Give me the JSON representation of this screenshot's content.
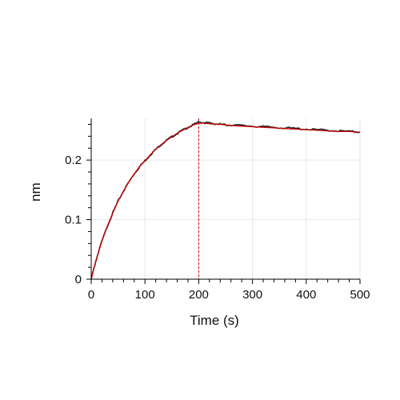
{
  "chart_data": {
    "type": "line",
    "title": "",
    "xlabel": "Time (s)",
    "ylabel": "nm",
    "xlim": [
      0,
      500
    ],
    "ylim": [
      0,
      0.27
    ],
    "x_ticks": [
      0,
      100,
      200,
      300,
      400,
      500
    ],
    "x_tick_labels": [
      "0",
      "100",
      "200",
      "300",
      "400",
      "500"
    ],
    "y_ticks": [
      0,
      0.1,
      0.2
    ],
    "y_tick_labels": [
      "0",
      "0.1",
      "0.2"
    ],
    "grid": true,
    "reference_lines_x": [
      0,
      200
    ],
    "series": [
      {
        "role": "measured",
        "color": "#222222",
        "x": [
          0,
          5,
          10,
          20,
          30,
          40,
          50,
          60,
          70,
          80,
          90,
          100,
          110,
          120,
          130,
          140,
          150,
          160,
          170,
          180,
          190,
          200,
          210,
          220,
          230,
          240,
          250,
          260,
          280,
          300,
          320,
          340,
          360,
          380,
          400,
          420,
          440,
          460,
          480,
          500
        ],
        "y": [
          0,
          0.018,
          0.035,
          0.064,
          0.089,
          0.111,
          0.131,
          0.148,
          0.163,
          0.177,
          0.189,
          0.199,
          0.209,
          0.218,
          0.226,
          0.233,
          0.239,
          0.245,
          0.25,
          0.255,
          0.259,
          0.264,
          0.263,
          0.262,
          0.261,
          0.26,
          0.259,
          0.259,
          0.258,
          0.257,
          0.256,
          0.255,
          0.254,
          0.253,
          0.252,
          0.251,
          0.25,
          0.249,
          0.248,
          0.247
        ]
      },
      {
        "role": "fit",
        "color": "#cc0000",
        "x": [
          0,
          5,
          10,
          20,
          30,
          40,
          50,
          60,
          70,
          80,
          90,
          100,
          110,
          120,
          130,
          140,
          150,
          160,
          170,
          180,
          190,
          200,
          210,
          220,
          230,
          240,
          250,
          260,
          280,
          300,
          320,
          340,
          360,
          380,
          400,
          420,
          440,
          460,
          480,
          500
        ],
        "y": [
          0,
          0.018,
          0.035,
          0.064,
          0.089,
          0.111,
          0.131,
          0.148,
          0.163,
          0.177,
          0.189,
          0.199,
          0.209,
          0.218,
          0.226,
          0.233,
          0.239,
          0.245,
          0.25,
          0.255,
          0.259,
          0.262,
          0.262,
          0.261,
          0.26,
          0.26,
          0.259,
          0.258,
          0.257,
          0.256,
          0.255,
          0.254,
          0.253,
          0.252,
          0.251,
          0.25,
          0.249,
          0.248,
          0.248,
          0.247
        ]
      }
    ]
  }
}
